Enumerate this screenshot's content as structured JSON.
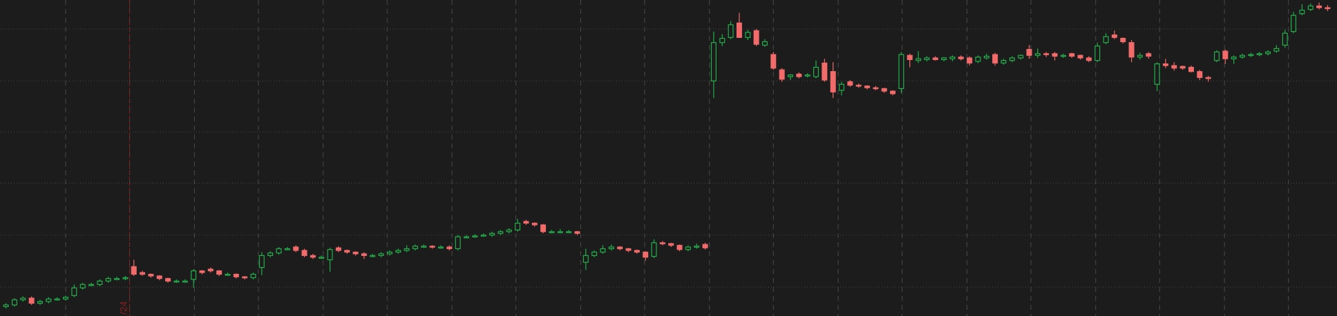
{
  "chart_data": {
    "type": "candlestick",
    "annotation": "/24",
    "xlim": [
      -0.7,
      156.1
    ],
    "ylim": [
      0,
      371
    ],
    "yticks": [
      34,
      95,
      156,
      216,
      276,
      337
    ],
    "xgrid": [
      7,
      14.5,
      22.1,
      29.6,
      37.2,
      44.7,
      52.3,
      59.8,
      67.4,
      74.9,
      82.5,
      90.0,
      97.6,
      105.1,
      112.7,
      120.2,
      127.8,
      135.3,
      142.9,
      150.4
    ],
    "marker_x": 14.5,
    "grid": true,
    "up_color": "#22b04b",
    "down_color": "#f26b6b",
    "grid_color": "#4a4a4a",
    "marker_color": "#8e1c1c",
    "ohlc": [
      [
        11,
        15,
        9,
        13
      ],
      [
        13,
        21,
        11,
        19
      ],
      [
        19,
        23,
        17,
        21
      ],
      [
        21,
        23,
        13,
        15
      ],
      [
        15,
        19,
        13,
        17
      ],
      [
        17,
        22,
        15,
        20
      ],
      [
        20,
        22,
        18,
        20
      ],
      [
        20,
        24,
        18,
        22
      ],
      [
        24,
        37,
        22,
        33
      ],
      [
        33,
        39,
        31,
        37
      ],
      [
        37,
        39,
        35,
        37
      ],
      [
        37,
        43,
        35,
        41
      ],
      [
        41,
        46,
        39,
        44
      ],
      [
        44,
        46,
        42,
        44
      ],
      [
        44,
        47,
        42,
        45
      ],
      [
        58,
        66,
        47,
        49
      ],
      [
        51,
        53,
        47,
        49
      ],
      [
        49,
        50,
        45,
        47
      ],
      [
        47,
        48,
        42,
        44
      ],
      [
        44,
        45,
        39,
        41
      ],
      [
        41,
        43,
        39,
        41
      ],
      [
        41,
        43,
        39,
        41
      ],
      [
        43,
        55,
        33,
        53
      ],
      [
        53,
        54,
        49,
        51
      ],
      [
        55,
        57,
        51,
        53
      ],
      [
        53,
        54,
        47,
        49
      ],
      [
        49,
        51,
        47,
        49
      ],
      [
        49,
        50,
        44,
        46
      ],
      [
        46,
        47,
        43,
        45
      ],
      [
        45,
        51,
        43,
        49
      ],
      [
        57,
        75,
        48,
        71
      ],
      [
        71,
        76,
        69,
        74
      ],
      [
        74,
        81,
        72,
        79
      ],
      [
        79,
        81,
        77,
        79
      ],
      [
        81,
        83,
        75,
        77
      ],
      [
        77,
        79,
        69,
        71
      ],
      [
        71,
        73,
        67,
        69
      ],
      [
        69,
        71,
        67,
        69
      ],
      [
        66,
        80,
        52,
        78
      ],
      [
        80,
        82,
        75,
        77
      ],
      [
        77,
        78,
        73,
        75
      ],
      [
        75,
        76,
        71,
        73
      ],
      [
        73,
        75,
        67,
        71
      ],
      [
        71,
        73,
        69,
        71
      ],
      [
        71,
        75,
        69,
        73
      ],
      [
        73,
        77,
        71,
        75
      ],
      [
        75,
        79,
        73,
        77
      ],
      [
        77,
        83,
        75,
        79
      ],
      [
        79,
        84,
        77,
        82
      ],
      [
        82,
        84,
        80,
        82
      ],
      [
        82,
        83,
        79,
        81
      ],
      [
        81,
        83,
        79,
        81
      ],
      [
        81,
        83,
        77,
        79
      ],
      [
        79,
        95,
        77,
        93
      ],
      [
        93,
        95,
        91,
        93
      ],
      [
        93,
        96,
        92,
        94
      ],
      [
        94,
        97,
        93,
        95
      ],
      [
        95,
        99,
        93,
        97
      ],
      [
        97,
        101,
        95,
        99
      ],
      [
        99,
        103,
        97,
        101
      ],
      [
        101,
        114,
        99,
        109
      ],
      [
        111,
        113,
        107,
        109
      ],
      [
        109,
        110,
        105,
        107
      ],
      [
        107,
        108,
        97,
        99
      ],
      [
        99,
        101,
        97,
        99
      ],
      [
        99,
        102,
        97,
        99
      ],
      [
        99,
        101,
        97,
        99
      ],
      [
        99,
        100,
        95,
        97
      ],
      [
        63,
        79,
        54,
        71
      ],
      [
        71,
        77,
        69,
        75
      ],
      [
        75,
        83,
        73,
        79
      ],
      [
        79,
        84,
        77,
        81
      ],
      [
        81,
        82,
        77,
        79
      ],
      [
        79,
        80,
        75,
        77
      ],
      [
        77,
        78,
        73,
        75
      ],
      [
        75,
        76,
        65,
        69
      ],
      [
        70,
        90,
        68,
        86
      ],
      [
        86,
        88,
        83,
        85
      ],
      [
        85,
        86,
        81,
        83
      ],
      [
        83,
        84,
        76,
        78
      ],
      [
        78,
        83,
        76,
        81
      ],
      [
        81,
        85,
        79,
        82
      ],
      [
        84,
        86,
        78,
        80
      ],
      [
        276,
        334,
        256,
        321
      ],
      [
        321,
        331,
        317,
        326
      ],
      [
        327,
        346,
        325,
        342
      ],
      [
        344,
        356,
        327,
        327
      ],
      [
        327,
        336,
        324,
        333
      ],
      [
        335,
        337,
        317,
        319
      ],
      [
        318,
        325,
        316,
        322
      ],
      [
        307,
        310,
        289,
        291
      ],
      [
        289,
        291,
        275,
        278
      ],
      [
        281,
        284,
        277,
        283
      ],
      [
        284,
        286,
        279,
        281
      ],
      [
        283,
        285,
        280,
        283
      ],
      [
        281,
        300,
        279,
        292
      ],
      [
        297,
        302,
        275,
        277
      ],
      [
        287,
        298,
        256,
        263
      ],
      [
        265,
        275,
        259,
        272
      ],
      [
        275,
        277,
        269,
        271
      ],
      [
        271,
        273,
        268,
        270
      ],
      [
        270,
        271,
        266,
        268
      ],
      [
        268,
        270,
        265,
        267
      ],
      [
        267,
        268,
        262,
        264
      ],
      [
        264,
        265,
        259,
        261
      ],
      [
        267,
        310,
        262,
        307
      ],
      [
        306,
        308,
        292,
        301
      ],
      [
        300,
        311,
        297,
        302
      ],
      [
        301,
        305,
        299,
        303
      ],
      [
        303,
        305,
        300,
        301
      ],
      [
        301,
        304,
        299,
        303
      ],
      [
        302,
        306,
        299,
        304
      ],
      [
        304,
        306,
        300,
        302
      ],
      [
        303,
        305,
        294,
        297
      ],
      [
        299,
        306,
        297,
        304
      ],
      [
        303,
        308,
        301,
        305
      ],
      [
        307,
        309,
        294,
        297
      ],
      [
        297,
        302,
        295,
        300
      ],
      [
        300,
        305,
        298,
        303
      ],
      [
        303,
        307,
        301,
        306
      ],
      [
        313,
        318,
        302,
        306
      ],
      [
        306,
        314,
        303,
        308
      ],
      [
        308,
        310,
        304,
        307
      ],
      [
        308,
        310,
        300,
        305
      ],
      [
        305,
        308,
        303,
        306
      ],
      [
        308,
        309,
        303,
        305
      ],
      [
        306,
        307,
        301,
        303
      ],
      [
        303,
        305,
        298,
        300
      ],
      [
        300,
        321,
        298,
        317
      ],
      [
        321,
        332,
        319,
        328
      ],
      [
        330,
        335,
        325,
        327
      ],
      [
        326,
        327,
        320,
        322
      ],
      [
        321,
        324,
        298,
        304
      ],
      [
        304,
        309,
        301,
        306
      ],
      [
        308,
        310,
        302,
        305
      ],
      [
        272,
        298,
        264,
        296
      ],
      [
        296,
        302,
        291,
        294
      ],
      [
        294,
        298,
        288,
        291
      ],
      [
        293,
        294,
        289,
        291
      ],
      [
        292,
        294,
        286,
        287
      ],
      [
        287,
        289,
        277,
        280
      ],
      [
        280,
        282,
        275,
        279
      ],
      [
        300,
        312,
        298,
        310
      ],
      [
        311,
        313,
        296,
        302
      ],
      [
        302,
        306,
        296,
        304
      ],
      [
        304,
        308,
        302,
        306
      ],
      [
        306,
        309,
        304,
        307
      ],
      [
        307,
        310,
        305,
        308
      ],
      [
        308,
        312,
        306,
        310
      ],
      [
        311,
        318,
        309,
        314
      ],
      [
        318,
        336,
        315,
        332
      ],
      [
        334,
        357,
        332,
        353
      ],
      [
        355,
        366,
        353,
        359
      ],
      [
        360,
        367,
        358,
        364
      ],
      [
        364,
        368,
        360,
        362
      ],
      [
        362,
        365,
        358,
        361
      ]
    ]
  }
}
